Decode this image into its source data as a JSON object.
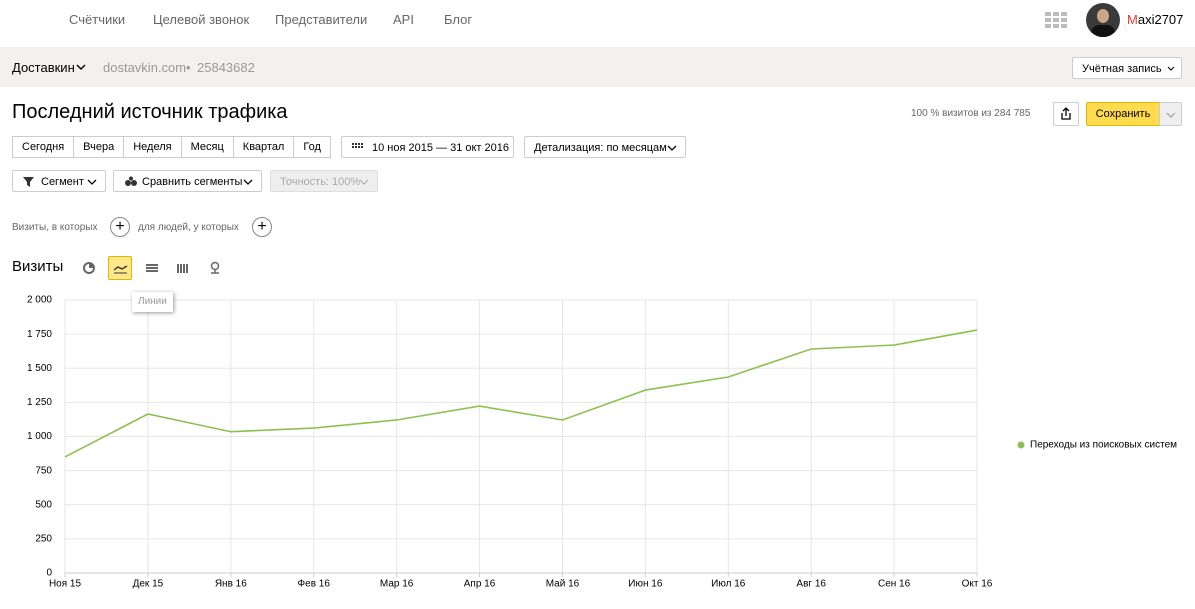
{
  "nav": {
    "items": [
      "Счётчики",
      "Целевой звонок",
      "Представители",
      "API",
      "Блог"
    ],
    "user": "Maxi2707"
  },
  "counter_bar": {
    "name": "Доставкин",
    "domain": "dostavkin.com",
    "separator": "•",
    "id": "25843682",
    "account": "Учётная запись"
  },
  "header": {
    "title": "Последний источник трафика",
    "sample": "100 % визитов из 284 785",
    "save": "Сохранить"
  },
  "periods": [
    "Сегодня",
    "Вчера",
    "Неделя",
    "Месяц",
    "Квартал",
    "Год"
  ],
  "date_range": "10 ноя 2015 — 31 окт 2016",
  "detail": "Детализация: по месяцам",
  "segment": "Сегмент",
  "compare": "Сравнить сегменты",
  "accuracy": "Точность: 100%",
  "filters": {
    "visits_where": "Визиты, в которых",
    "people_where": "для людей, у которых"
  },
  "metric_title": "Визиты",
  "tooltip": "Линии",
  "chart_data": {
    "type": "line",
    "categories": [
      "Ноя 15",
      "Дек 15",
      "Янв 16",
      "Фев 16",
      "Мар 16",
      "Апр 16",
      "Май 16",
      "Июн 16",
      "Июл 16",
      "Авг 16",
      "Сен 16",
      "Окт 16"
    ],
    "series": [
      {
        "name": "Переходы из поисковых систем",
        "color": "#8cc152",
        "values": [
          850,
          1165,
          1035,
          1062,
          1121,
          1223,
          1121,
          1340,
          1436,
          1641,
          1670,
          1780
        ]
      }
    ],
    "ylim": [
      0,
      2000
    ],
    "yticks": [
      0,
      250,
      500,
      750,
      {
        "value": 1000,
        "label": "1 000"
      },
      {
        "value": 1250,
        "label": "1 250"
      },
      {
        "value": 1500,
        "label": "1 500"
      },
      {
        "value": 1750,
        "label": "1 750"
      },
      {
        "value": 2000,
        "label": "2 000"
      }
    ],
    "grid": true,
    "legend": "right"
  }
}
